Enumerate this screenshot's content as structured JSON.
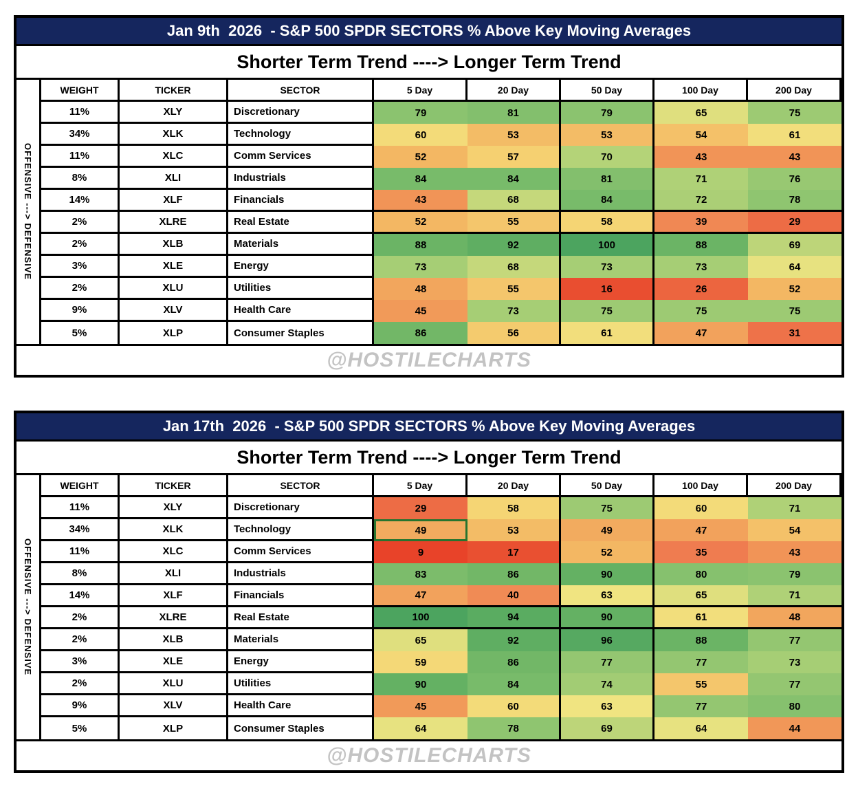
{
  "style": {
    "title_bg": "#15265E",
    "title_text": "#FFFFFF",
    "grid_line": "#000000",
    "watermark_color": "#C3C3C3",
    "highlight_border": "#27742F",
    "heatmap_stops": [
      [
        0.0,
        "#E63420"
      ],
      [
        0.2,
        "#EA5534"
      ],
      [
        0.35,
        "#EF7C50"
      ],
      [
        0.45,
        "#F19A59"
      ],
      [
        0.52,
        "#F3B763"
      ],
      [
        0.58,
        "#F5D574"
      ],
      [
        0.63,
        "#F0E481"
      ],
      [
        0.7,
        "#B4D378"
      ],
      [
        0.8,
        "#86C16E"
      ],
      [
        0.9,
        "#64B163"
      ],
      [
        1.0,
        "#4CA45F"
      ]
    ]
  },
  "chart_data": [
    {
      "type": "heatmap",
      "title": "Jan 9th  2026  - S&P 500 SPDR SECTORS % Above Key Moving Averages",
      "subtitle": "Shorter Term Trend ----> Longer Term Trend",
      "row_axis_label": "OFFENSIVE ---> DEFENSIVE",
      "watermark": "@HOSTILECHARTS",
      "columns": [
        "WEIGHT",
        "TICKER",
        "SECTOR",
        "5 Day",
        "20 Day",
        "50 Day",
        "100 Day",
        "200 Day"
      ],
      "value_range": [
        0,
        100
      ],
      "highlight_cell": null,
      "rows": [
        {
          "weight": "11%",
          "ticker": "XLY",
          "sector": "Discretionary",
          "values": [
            79,
            81,
            79,
            65,
            75
          ]
        },
        {
          "weight": "34%",
          "ticker": "XLK",
          "sector": "Technology",
          "values": [
            60,
            53,
            53,
            54,
            61
          ]
        },
        {
          "weight": "11%",
          "ticker": "XLC",
          "sector": "Comm Services",
          "values": [
            52,
            57,
            70,
            43,
            43
          ]
        },
        {
          "weight": "8%",
          "ticker": "XLI",
          "sector": "Industrials",
          "values": [
            84,
            84,
            81,
            71,
            76
          ]
        },
        {
          "weight": "14%",
          "ticker": "XLF",
          "sector": "Financials",
          "values": [
            43,
            68,
            84,
            72,
            78
          ]
        },
        {
          "weight": "2%",
          "ticker": "XLRE",
          "sector": "Real Estate",
          "values": [
            52,
            55,
            58,
            39,
            29
          ]
        },
        {
          "weight": "2%",
          "ticker": "XLB",
          "sector": "Materials",
          "values": [
            88,
            92,
            100,
            88,
            69
          ]
        },
        {
          "weight": "3%",
          "ticker": "XLE",
          "sector": "Energy",
          "values": [
            73,
            68,
            73,
            73,
            64
          ]
        },
        {
          "weight": "2%",
          "ticker": "XLU",
          "sector": "Utilities",
          "values": [
            48,
            55,
            16,
            26,
            52
          ]
        },
        {
          "weight": "9%",
          "ticker": "XLV",
          "sector": "Health Care",
          "values": [
            45,
            73,
            75,
            75,
            75
          ]
        },
        {
          "weight": "5%",
          "ticker": "XLP",
          "sector": "Consumer Staples",
          "values": [
            86,
            56,
            61,
            47,
            31
          ]
        }
      ]
    },
    {
      "type": "heatmap",
      "title": "Jan 17th  2026  - S&P 500 SPDR SECTORS % Above Key Moving Averages",
      "subtitle": "Shorter Term Trend ----> Longer Term Trend",
      "row_axis_label": "OFFENSIVE ---> DEFENSIVE",
      "watermark": "@HOSTILECHARTS",
      "columns": [
        "WEIGHT",
        "TICKER",
        "SECTOR",
        "5 Day",
        "20 Day",
        "50 Day",
        "100 Day",
        "200 Day"
      ],
      "value_range": [
        0,
        100
      ],
      "highlight_cell": {
        "row": 1,
        "col": 0
      },
      "rows": [
        {
          "weight": "11%",
          "ticker": "XLY",
          "sector": "Discretionary",
          "values": [
            29,
            58,
            75,
            60,
            71
          ]
        },
        {
          "weight": "34%",
          "ticker": "XLK",
          "sector": "Technology",
          "values": [
            49,
            53,
            49,
            47,
            54
          ]
        },
        {
          "weight": "11%",
          "ticker": "XLC",
          "sector": "Comm Services",
          "values": [
            9,
            17,
            52,
            35,
            43
          ]
        },
        {
          "weight": "8%",
          "ticker": "XLI",
          "sector": "Industrials",
          "values": [
            83,
            86,
            90,
            80,
            79
          ]
        },
        {
          "weight": "14%",
          "ticker": "XLF",
          "sector": "Financials",
          "values": [
            47,
            40,
            63,
            65,
            71
          ]
        },
        {
          "weight": "2%",
          "ticker": "XLRE",
          "sector": "Real Estate",
          "values": [
            100,
            94,
            90,
            61,
            48
          ]
        },
        {
          "weight": "2%",
          "ticker": "XLB",
          "sector": "Materials",
          "values": [
            65,
            92,
            96,
            88,
            77
          ]
        },
        {
          "weight": "3%",
          "ticker": "XLE",
          "sector": "Energy",
          "values": [
            59,
            86,
            77,
            77,
            73
          ]
        },
        {
          "weight": "2%",
          "ticker": "XLU",
          "sector": "Utilities",
          "values": [
            90,
            84,
            74,
            55,
            77
          ]
        },
        {
          "weight": "9%",
          "ticker": "XLV",
          "sector": "Health Care",
          "values": [
            45,
            60,
            63,
            77,
            80
          ]
        },
        {
          "weight": "5%",
          "ticker": "XLP",
          "sector": "Consumer Staples",
          "values": [
            64,
            78,
            69,
            64,
            44
          ]
        }
      ]
    }
  ]
}
